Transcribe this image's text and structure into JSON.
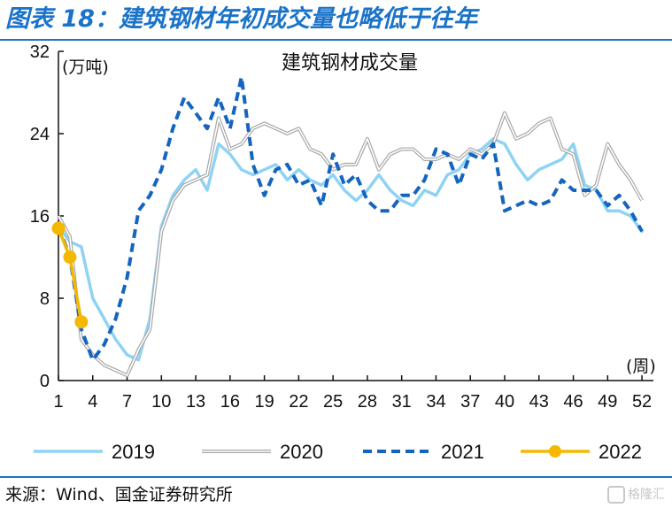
{
  "figure": {
    "title": "图表 18：建筑钢材年初成交量也略低于往年",
    "source": "来源：Wind、国金证券研究所",
    "watermark": "格隆汇"
  },
  "colors": {
    "frame": "#1a73c9",
    "series_2019": "#8fd3f4",
    "series_2020": "#a8a8a8",
    "series_2021": "#1565c0",
    "series_2022": "#f5b800"
  },
  "chart_data": {
    "type": "line",
    "title": "建筑钢材成交量",
    "ylabel": "(万吨)",
    "xlabel": "(周)",
    "ylim": [
      0,
      32
    ],
    "yticks": [
      0,
      8,
      16,
      24,
      32
    ],
    "xlim": [
      1,
      53
    ],
    "xticks": [
      1,
      4,
      7,
      10,
      13,
      16,
      19,
      22,
      25,
      28,
      31,
      34,
      37,
      40,
      43,
      46,
      49,
      52
    ],
    "grid": false,
    "legend_position": "bottom",
    "series": [
      {
        "name": "2019",
        "style": "solid-light-blue",
        "x": [
          1,
          2,
          3,
          4,
          5,
          6,
          7,
          8,
          9,
          10,
          11,
          12,
          13,
          14,
          15,
          16,
          17,
          18,
          19,
          20,
          21,
          22,
          23,
          24,
          25,
          26,
          27,
          28,
          29,
          30,
          31,
          32,
          33,
          34,
          35,
          36,
          37,
          38,
          39,
          40,
          41,
          42,
          43,
          44,
          45,
          46,
          47,
          48,
          49,
          50,
          51,
          52
        ],
        "y": [
          15.0,
          13.5,
          13.0,
          8.0,
          6.0,
          4.0,
          2.5,
          2.0,
          6.0,
          15.0,
          18.0,
          19.5,
          20.5,
          18.5,
          23.0,
          22.0,
          20.5,
          20.0,
          20.5,
          21.0,
          19.5,
          20.5,
          19.5,
          19.0,
          20.0,
          18.5,
          17.5,
          18.5,
          20.0,
          18.5,
          17.5,
          17.0,
          18.5,
          18.0,
          20.0,
          20.5,
          22.0,
          22.5,
          23.5,
          23.0,
          21.0,
          19.5,
          20.5,
          21.0,
          21.5,
          23.0,
          19.0,
          18.5,
          16.5,
          16.5,
          16.0,
          14.5
        ]
      },
      {
        "name": "2020",
        "style": "double-line-gray",
        "x": [
          1,
          2,
          3,
          4,
          5,
          6,
          7,
          8,
          9,
          10,
          11,
          12,
          13,
          14,
          15,
          16,
          17,
          18,
          19,
          20,
          21,
          22,
          23,
          24,
          25,
          26,
          27,
          28,
          29,
          30,
          31,
          32,
          33,
          34,
          35,
          36,
          37,
          38,
          39,
          40,
          41,
          42,
          43,
          44,
          45,
          46,
          47,
          48,
          49,
          50,
          51,
          52
        ],
        "y": [
          16.0,
          14.0,
          4.0,
          2.5,
          1.5,
          1.0,
          0.5,
          3.0,
          5.0,
          14.5,
          17.5,
          19.0,
          19.5,
          20.0,
          25.5,
          22.5,
          23.0,
          24.5,
          25.0,
          24.5,
          24.0,
          24.5,
          22.5,
          22.0,
          20.5,
          21.0,
          21.0,
          23.5,
          20.5,
          22.0,
          22.5,
          22.5,
          21.5,
          21.5,
          22.0,
          21.5,
          22.5,
          22.0,
          23.0,
          26.0,
          23.5,
          24.0,
          25.0,
          25.5,
          22.5,
          22.0,
          18.0,
          19.0,
          23.0,
          21.0,
          19.5,
          17.5
        ]
      },
      {
        "name": "2021",
        "style": "dashed-blue",
        "x": [
          1,
          2,
          3,
          4,
          5,
          6,
          7,
          8,
          9,
          10,
          11,
          12,
          13,
          14,
          15,
          16,
          17,
          18,
          19,
          20,
          21,
          22,
          23,
          24,
          25,
          26,
          27,
          28,
          29,
          30,
          31,
          32,
          33,
          34,
          35,
          36,
          37,
          38,
          39,
          40,
          41,
          42,
          43,
          44,
          45,
          46,
          47,
          48,
          49,
          50,
          51,
          52
        ],
        "y": [
          15.0,
          12.0,
          5.0,
          2.0,
          3.5,
          6.0,
          10.0,
          16.5,
          18.0,
          20.5,
          24.5,
          27.5,
          26.0,
          24.5,
          27.5,
          24.5,
          29.5,
          21.0,
          18.0,
          20.5,
          21.0,
          19.0,
          19.5,
          17.0,
          22.0,
          19.0,
          20.0,
          17.5,
          16.5,
          16.5,
          18.0,
          18.0,
          19.5,
          22.5,
          22.0,
          19.0,
          22.0,
          21.5,
          23.0,
          16.5,
          17.0,
          17.5,
          17.0,
          17.5,
          19.5,
          18.5,
          18.5,
          18.5,
          17.0,
          18.0,
          16.5,
          14.5
        ]
      },
      {
        "name": "2022",
        "style": "solid-gold-markers",
        "x": [
          1,
          2,
          3
        ],
        "y": [
          14.8,
          12.0,
          5.7
        ]
      }
    ]
  }
}
